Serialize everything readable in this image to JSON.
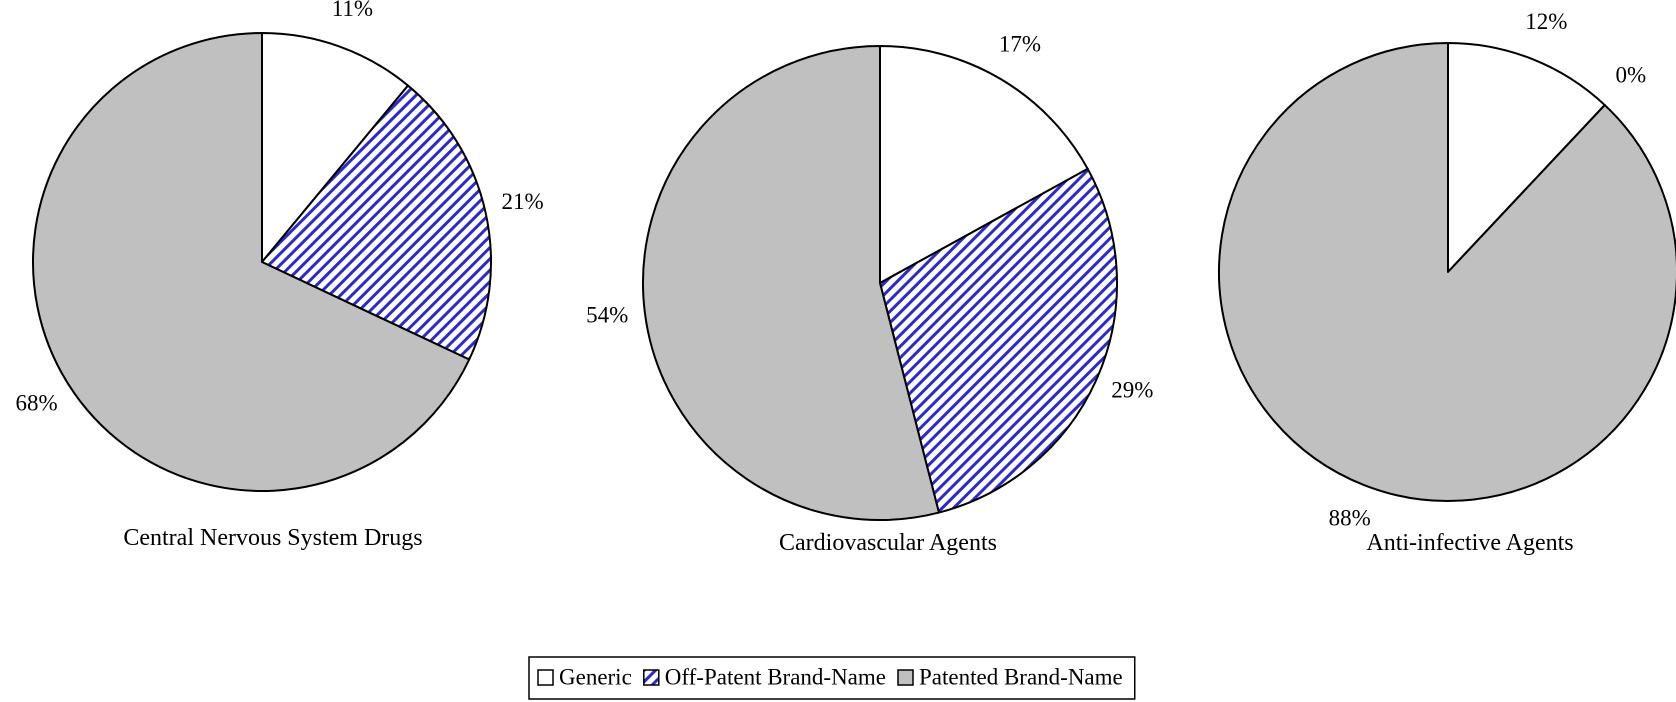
{
  "chart_data": [
    {
      "type": "pie",
      "title": "Central Nervous System Drugs",
      "values": [
        11,
        21,
        68
      ],
      "value_labels": [
        "11%",
        "21%",
        "68%"
      ]
    },
    {
      "type": "pie",
      "title": "Cardiovascular Agents",
      "values": [
        17,
        29,
        54
      ],
      "value_labels": [
        "17%",
        "29%",
        "54%"
      ]
    },
    {
      "type": "pie",
      "title": "Anti-infective Agents",
      "values": [
        12,
        0,
        88
      ],
      "value_labels": [
        "12%",
        "0%",
        "88%"
      ]
    }
  ],
  "categories": [
    "Generic",
    "Off-Patent Brand-Name",
    "Patented Brand-Name"
  ],
  "colors": [
    "#ffffff",
    "hatch:#2a2ad0",
    "#c0c0c0"
  ]
}
